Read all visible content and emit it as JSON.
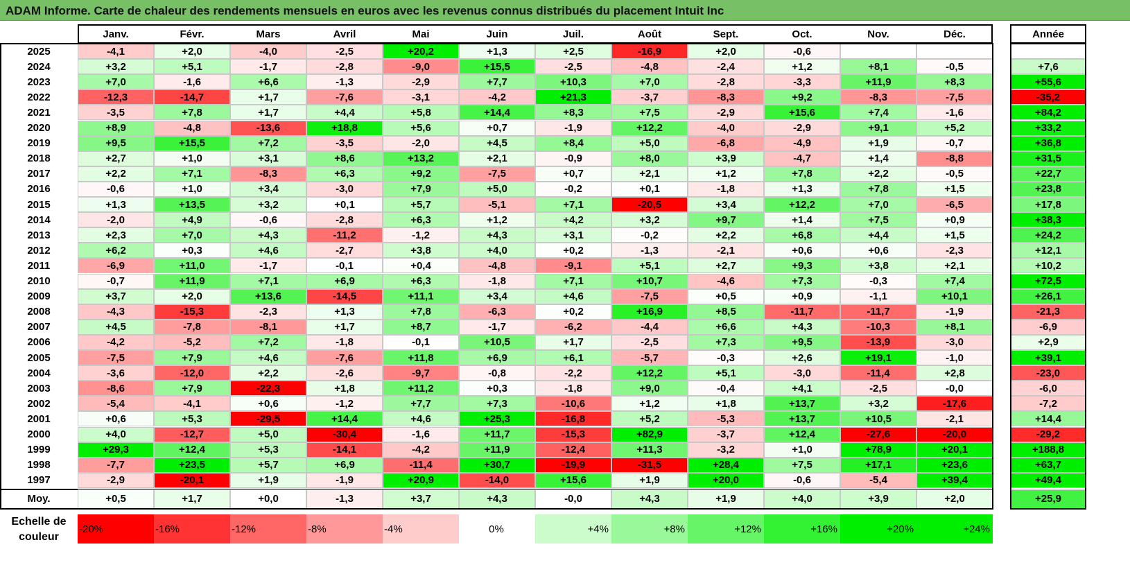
{
  "title": "ADAM Informe. Carte de chaleur des rendements mensuels en euros avec les revenus connus distribués du placement Intuit Inc",
  "chart_data": {
    "type": "heatmap",
    "title": "ADAM Informe. Carte de chaleur des rendements mensuels en euros avec les revenus connus distribués du placement Intuit Inc",
    "months": [
      "Janv.",
      "Févr.",
      "Mars",
      "Avril",
      "Mai",
      "Juin",
      "Juil.",
      "Août",
      "Sept.",
      "Oct.",
      "Nov.",
      "Déc."
    ],
    "year_header": "Année",
    "rows": [
      {
        "year": "2025",
        "values": [
          "-4,1",
          "+2,0",
          "-4,0",
          "-2,5",
          "+20,2",
          "+1,3",
          "+2,5",
          "-16,9",
          "+2,0",
          "-0,6",
          "",
          ""
        ],
        "annual": ""
      },
      {
        "year": "2024",
        "values": [
          "+3,2",
          "+5,1",
          "-1,7",
          "-2,8",
          "-9,0",
          "+15,5",
          "-2,5",
          "-4,8",
          "-2,4",
          "+1,2",
          "+8,1",
          "-0,5"
        ],
        "annual": "+7,6"
      },
      {
        "year": "2023",
        "values": [
          "+7,0",
          "-1,6",
          "+6,6",
          "-1,3",
          "-2,9",
          "+7,7",
          "+10,3",
          "+7,0",
          "-2,8",
          "-3,3",
          "+11,9",
          "+8,3"
        ],
        "annual": "+55,6"
      },
      {
        "year": "2022",
        "values": [
          "-12,3",
          "-14,7",
          "+1,7",
          "-7,6",
          "-3,1",
          "-4,2",
          "+21,3",
          "-3,7",
          "-8,3",
          "+9,2",
          "-8,3",
          "-7,5"
        ],
        "annual": "-35,2"
      },
      {
        "year": "2021",
        "values": [
          "-3,5",
          "+7,8",
          "+1,7",
          "+4,4",
          "+5,8",
          "+14,4",
          "+8,3",
          "+7,5",
          "-2,9",
          "+15,6",
          "+7,4",
          "-1,6"
        ],
        "annual": "+84,2"
      },
      {
        "year": "2020",
        "values": [
          "+8,9",
          "-4,8",
          "-13,6",
          "+18,8",
          "+5,6",
          "+0,7",
          "-1,9",
          "+12,2",
          "-4,0",
          "-2,9",
          "+9,1",
          "+5,2"
        ],
        "annual": "+33,2"
      },
      {
        "year": "2019",
        "values": [
          "+9,5",
          "+15,5",
          "+7,2",
          "-3,5",
          "-2,0",
          "+4,5",
          "+8,4",
          "+5,0",
          "-6,8",
          "-4,9",
          "+1,9",
          "-0,7"
        ],
        "annual": "+36,8"
      },
      {
        "year": "2018",
        "values": [
          "+2,7",
          "+1,0",
          "+3,1",
          "+8,6",
          "+13,2",
          "+2,1",
          "-0,9",
          "+8,0",
          "+3,9",
          "-4,7",
          "+1,4",
          "-8,8"
        ],
        "annual": "+31,5"
      },
      {
        "year": "2017",
        "values": [
          "+2,2",
          "+7,1",
          "-8,3",
          "+6,3",
          "+9,2",
          "-7,5",
          "+0,7",
          "+2,1",
          "+1,2",
          "+7,8",
          "+2,2",
          "-0,5"
        ],
        "annual": "+22,7"
      },
      {
        "year": "2016",
        "values": [
          "-0,6",
          "+1,0",
          "+3,4",
          "-3,0",
          "+7,9",
          "+5,0",
          "-0,2",
          "+0,1",
          "-1,8",
          "+1,3",
          "+7,8",
          "+1,5"
        ],
        "annual": "+23,8"
      },
      {
        "year": "2015",
        "values": [
          "+1,3",
          "+13,5",
          "+3,2",
          "+0,1",
          "+5,7",
          "-5,1",
          "+7,1",
          "-20,5",
          "+3,4",
          "+12,2",
          "+7,0",
          "-6,5"
        ],
        "annual": "+17,8"
      },
      {
        "year": "2014",
        "values": [
          "-2,0",
          "+4,9",
          "-0,6",
          "-2,8",
          "+6,3",
          "+1,2",
          "+4,2",
          "+3,2",
          "+9,7",
          "+1,4",
          "+7,5",
          "+0,9"
        ],
        "annual": "+38,3"
      },
      {
        "year": "2013",
        "values": [
          "+2,3",
          "+7,0",
          "+4,3",
          "-11,2",
          "-1,2",
          "+4,3",
          "+3,1",
          "-0,2",
          "+2,2",
          "+6,8",
          "+4,4",
          "+1,5"
        ],
        "annual": "+24,2"
      },
      {
        "year": "2012",
        "values": [
          "+6,2",
          "+0,3",
          "+4,6",
          "-2,7",
          "+3,8",
          "+4,0",
          "+0,2",
          "-1,3",
          "-2,1",
          "+0,6",
          "+0,6",
          "-2,3"
        ],
        "annual": "+12,1"
      },
      {
        "year": "2011",
        "values": [
          "-6,9",
          "+11,0",
          "-1,7",
          "-0,1",
          "+0,4",
          "-4,8",
          "-9,1",
          "+5,1",
          "+2,7",
          "+9,3",
          "+3,8",
          "+2,1"
        ],
        "annual": "+10,2"
      },
      {
        "year": "2010",
        "values": [
          "-0,7",
          "+11,9",
          "+7,1",
          "+6,9",
          "+6,3",
          "-1,8",
          "+7,1",
          "+10,7",
          "-4,6",
          "+7,3",
          "-0,3",
          "+7,4"
        ],
        "annual": "+72,5"
      },
      {
        "year": "2009",
        "values": [
          "+3,7",
          "+2,0",
          "+13,6",
          "-14,5",
          "+11,1",
          "+3,4",
          "+4,6",
          "-7,5",
          "+0,5",
          "+0,9",
          "-1,1",
          "+10,1"
        ],
        "annual": "+26,1"
      },
      {
        "year": "2008",
        "values": [
          "-4,3",
          "-15,3",
          "-2,3",
          "+1,3",
          "+7,8",
          "-6,3",
          "+0,2",
          "+16,9",
          "+8,5",
          "-11,7",
          "-11,7",
          "-1,9"
        ],
        "annual": "-21,3"
      },
      {
        "year": "2007",
        "values": [
          "+4,5",
          "-7,8",
          "-8,1",
          "+1,7",
          "+8,7",
          "-1,7",
          "-6,2",
          "-4,4",
          "+6,6",
          "+4,3",
          "-10,3",
          "+8,1"
        ],
        "annual": "-6,9"
      },
      {
        "year": "2006",
        "values": [
          "-4,2",
          "-5,2",
          "+7,2",
          "-1,8",
          "-0,1",
          "+10,5",
          "+1,7",
          "-2,5",
          "+7,3",
          "+9,5",
          "-13,9",
          "-3,0"
        ],
        "annual": "+2,9"
      },
      {
        "year": "2005",
        "values": [
          "-7,5",
          "+7,9",
          "+4,6",
          "-7,6",
          "+11,8",
          "+6,9",
          "+6,1",
          "-5,7",
          "-0,3",
          "+2,6",
          "+19,1",
          "-1,0"
        ],
        "annual": "+39,1"
      },
      {
        "year": "2004",
        "values": [
          "-3,6",
          "-12,0",
          "+2,2",
          "-2,6",
          "-9,7",
          "-0,8",
          "-2,2",
          "+12,2",
          "+5,1",
          "-3,0",
          "-11,4",
          "+2,8"
        ],
        "annual": "-23,0"
      },
      {
        "year": "2003",
        "values": [
          "-8,6",
          "+7,9",
          "-22,3",
          "+1,8",
          "+11,2",
          "+0,3",
          "-1,8",
          "+9,0",
          "-0,4",
          "+4,1",
          "-2,5",
          "-0,0"
        ],
        "annual": "-6,0"
      },
      {
        "year": "2002",
        "values": [
          "-5,4",
          "-4,1",
          "+0,6",
          "-1,2",
          "+7,7",
          "+7,3",
          "-10,6",
          "+1,2",
          "+1,8",
          "+13,7",
          "+3,2",
          "-17,6"
        ],
        "annual": "-7,2"
      },
      {
        "year": "2001",
        "values": [
          "+0,6",
          "+5,3",
          "-29,5",
          "+14,4",
          "+4,6",
          "+25,3",
          "-16,8",
          "+5,2",
          "-5,3",
          "+13,7",
          "+10,5",
          "-2,1"
        ],
        "annual": "+14,4"
      },
      {
        "year": "2000",
        "values": [
          "+4,0",
          "-12,7",
          "+5,0",
          "-30,4",
          "-1,6",
          "+11,7",
          "-15,3",
          "+82,9",
          "-3,7",
          "+12,4",
          "-27,6",
          "-20,0"
        ],
        "annual": "-29,2"
      },
      {
        "year": "1999",
        "values": [
          "+29,3",
          "+12,4",
          "+5,3",
          "-14,1",
          "-4,2",
          "+11,9",
          "-12,4",
          "+11,3",
          "-3,2",
          "+1,0",
          "+78,9",
          "+20,1"
        ],
        "annual": "+188,8"
      },
      {
        "year": "1998",
        "values": [
          "-7,7",
          "+23,5",
          "+5,7",
          "+6,9",
          "-11,4",
          "+30,7",
          "-19,9",
          "-31,5",
          "+28,4",
          "+7,5",
          "+17,1",
          "+23,6"
        ],
        "annual": "+63,7"
      },
      {
        "year": "1997",
        "values": [
          "-2,9",
          "-20,1",
          "+1,9",
          "-1,9",
          "+20,9",
          "-14,0",
          "+15,6",
          "+1,9",
          "+20,0",
          "-0,6",
          "-5,4",
          "+39,4"
        ],
        "annual": "+49,4"
      }
    ],
    "average": {
      "label": "Moy.",
      "values": [
        "+0,5",
        "+1,7",
        "+0,0",
        "-1,3",
        "+3,7",
        "+4,3",
        "-0,0",
        "+4,3",
        "+1,9",
        "+4,0",
        "+3,9",
        "+2,0"
      ],
      "annual": "+25,9"
    },
    "scale": {
      "label": "Echelle de couleur",
      "steps": [
        "-20%",
        "-16%",
        "-12%",
        "-8%",
        "-4%",
        "0%",
        "+4%",
        "+8%",
        "+12%",
        "+16%",
        "+20%",
        "+24%"
      ]
    },
    "colors": {
      "neg_max": "#ff0000",
      "zero": "#ffffff",
      "pos_max": "#00ee00",
      "title_bg": "#77c066"
    }
  }
}
